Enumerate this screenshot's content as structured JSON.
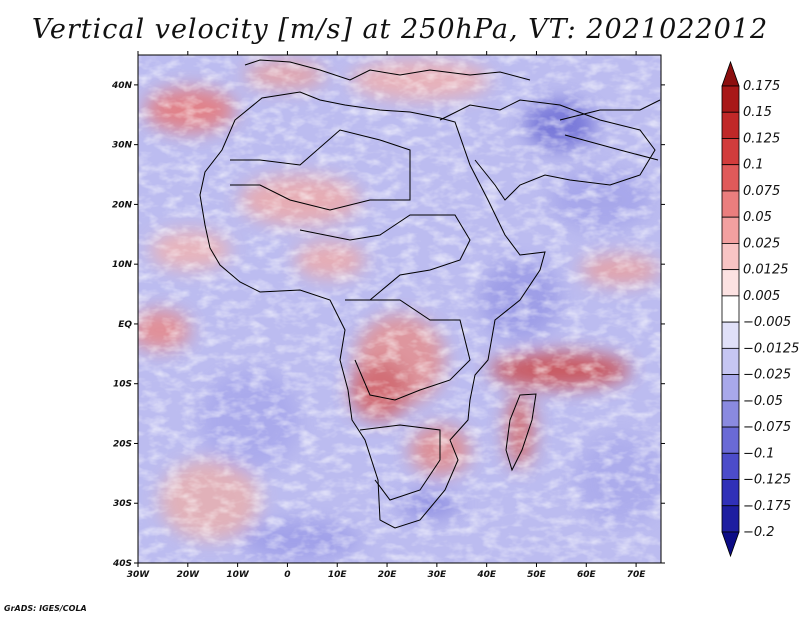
{
  "title": "Vertical velocity [m/s] at 250hPa, VT: 2021022012",
  "credit": "GrADS: IGES/COLA",
  "lat_ticks": [
    {
      "label": "40N",
      "lat": 40
    },
    {
      "label": "30N",
      "lat": 30
    },
    {
      "label": "20N",
      "lat": 20
    },
    {
      "label": "10N",
      "lat": 10
    },
    {
      "label": "EQ",
      "lat": 0
    },
    {
      "label": "10S",
      "lat": -10
    },
    {
      "label": "20S",
      "lat": -20
    },
    {
      "label": "30S",
      "lat": -30
    },
    {
      "label": "40S",
      "lat": -40
    }
  ],
  "lon_ticks": [
    {
      "label": "30W",
      "lon": -30
    },
    {
      "label": "20W",
      "lon": -20
    },
    {
      "label": "10W",
      "lon": -10
    },
    {
      "label": "0",
      "lon": 0
    },
    {
      "label": "10E",
      "lon": 10
    },
    {
      "label": "20E",
      "lon": 20
    },
    {
      "label": "30E",
      "lon": 30
    },
    {
      "label": "40E",
      "lon": 40
    },
    {
      "label": "50E",
      "lon": 50
    },
    {
      "label": "60E",
      "lon": 60
    },
    {
      "label": "70E",
      "lon": 70
    }
  ],
  "map_extent": {
    "lon_min": -30,
    "lon_max": 75,
    "lat_min": -40,
    "lat_max": 45
  },
  "colorbar": {
    "labels": [
      "0.175",
      "0.15",
      "0.125",
      "0.1",
      "0.075",
      "0.05",
      "0.025",
      "0.0125",
      "0.005",
      "−0.005",
      "−0.0125",
      "−0.025",
      "−0.05",
      "−0.075",
      "−0.1",
      "−0.125",
      "−0.175",
      "−0.2"
    ],
    "colors": [
      "#8c0f0f",
      "#a81818",
      "#c02828",
      "#d23c3c",
      "#e05a5a",
      "#ea7e7e",
      "#f2a0a0",
      "#f8c4c4",
      "#fce2e2",
      "#ffffff",
      "#e0e0f8",
      "#c6c6f2",
      "#a8a8ea",
      "#8a8ae0",
      "#6a6ad6",
      "#4c4cca",
      "#3030b8",
      "#1e1ea0",
      "#0c0c86"
    ]
  },
  "colors": {
    "land_outline": "#000000",
    "background_field": "#bcbcf0"
  }
}
